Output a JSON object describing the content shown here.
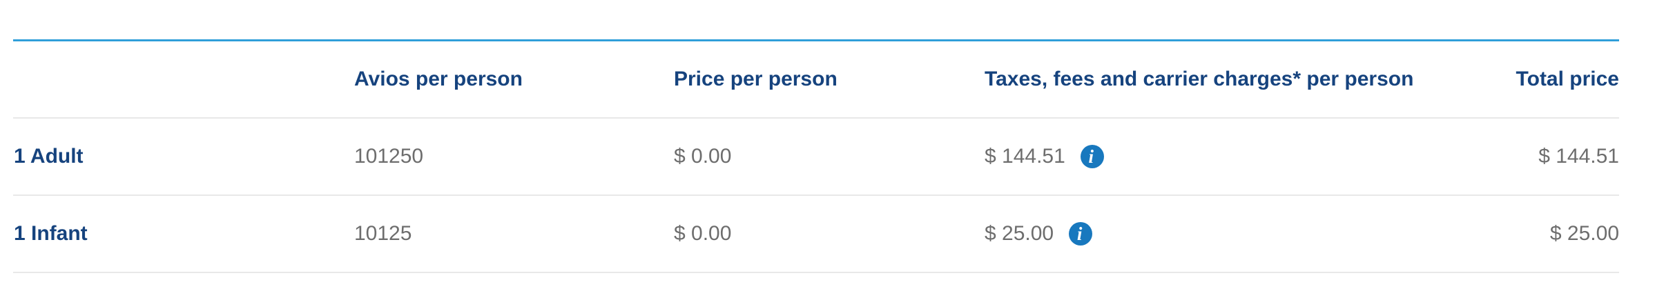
{
  "colors": {
    "header_text": "#16437E",
    "value_text": "#6D6D6D",
    "separator": "#E8E8E8",
    "top_accent": "#2F9FD9",
    "info_icon_bg": "#1878BE"
  },
  "icons": {
    "info_glyph": "i"
  },
  "table": {
    "columns": {
      "passenger": "",
      "avios": "Avios per person",
      "price": "Price per person",
      "taxes": "Taxes, fees and carrier charges* per person",
      "total": "Total price"
    },
    "rows": [
      {
        "passenger": "1 Adult",
        "avios": "101250",
        "price": "$ 0.00",
        "taxes": "$ 144.51",
        "total": "$ 144.51"
      },
      {
        "passenger": "1 Infant",
        "avios": "10125",
        "price": "$ 0.00",
        "taxes": "$ 25.00",
        "total": "$ 25.00"
      }
    ]
  }
}
